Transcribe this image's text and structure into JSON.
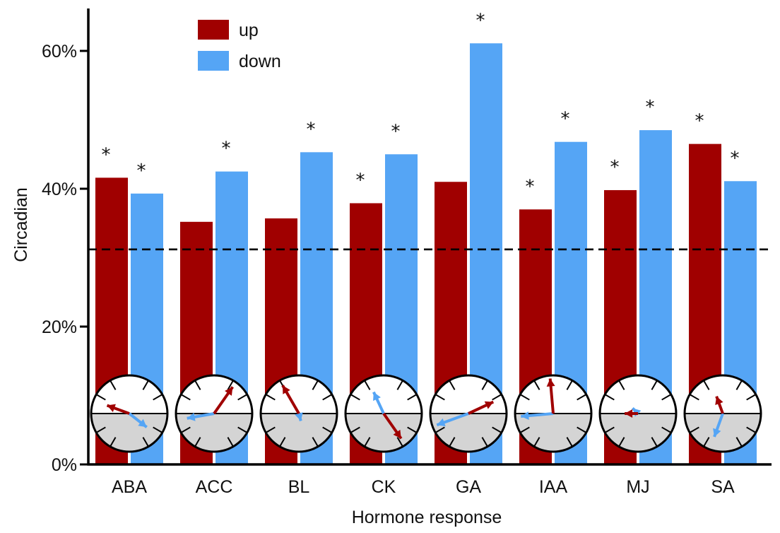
{
  "chart_data": {
    "type": "bar",
    "xlabel": "Hormone response",
    "ylabel": "Circadian",
    "ylim": [
      0,
      60
    ],
    "yticks": [
      0,
      20,
      40,
      60
    ],
    "ytick_labels": [
      "0%",
      "20%",
      "40%",
      "60%"
    ],
    "reference_line": 31.2,
    "legend_position": "top-left",
    "categories": [
      "ABA",
      "ACC",
      "BL",
      "CK",
      "GA",
      "IAA",
      "MJ",
      "SA"
    ],
    "series": [
      {
        "name": "up",
        "color": "#a00000",
        "values": [
          41.6,
          35.2,
          35.7,
          37.9,
          41.0,
          37.0,
          39.8,
          46.5
        ],
        "significant": [
          true,
          false,
          false,
          true,
          false,
          true,
          true,
          true
        ]
      },
      {
        "name": "down",
        "color": "#55a5f5",
        "values": [
          39.3,
          42.5,
          45.3,
          45.0,
          61.1,
          46.8,
          48.5,
          41.1
        ],
        "significant": [
          true,
          true,
          true,
          true,
          true,
          true,
          true,
          true
        ]
      }
    ],
    "significance_marker": "*",
    "phase_clocks": [
      {
        "category": "ABA",
        "up": {
          "angle_deg": 160,
          "length": 0.62
        },
        "down": {
          "angle_deg": -38,
          "length": 0.58
        }
      },
      {
        "category": "ACC",
        "up": {
          "angle_deg": 55,
          "length": 0.85
        },
        "down": {
          "angle_deg": 190,
          "length": 0.72
        }
      },
      {
        "category": "BL",
        "up": {
          "angle_deg": 120,
          "length": 0.85
        },
        "down": {
          "angle_deg": -75,
          "length": 0.2
        }
      },
      {
        "category": "CK",
        "up": {
          "angle_deg": -55,
          "length": 0.8
        },
        "down": {
          "angle_deg": 115,
          "length": 0.62
        }
      },
      {
        "category": "GA",
        "up": {
          "angle_deg": 25,
          "length": 0.72
        },
        "down": {
          "angle_deg": 200,
          "length": 0.88
        }
      },
      {
        "category": "IAA",
        "up": {
          "angle_deg": 95,
          "length": 0.92
        },
        "down": {
          "angle_deg": 185,
          "length": 0.85
        }
      },
      {
        "category": "MJ",
        "up": {
          "angle_deg": 180,
          "length": 0.35
        },
        "down": {
          "angle_deg": 135,
          "length": 0.2
        }
      },
      {
        "category": "SA",
        "up": {
          "angle_deg": 110,
          "length": 0.48
        },
        "down": {
          "angle_deg": -110,
          "length": 0.65
        }
      }
    ]
  }
}
